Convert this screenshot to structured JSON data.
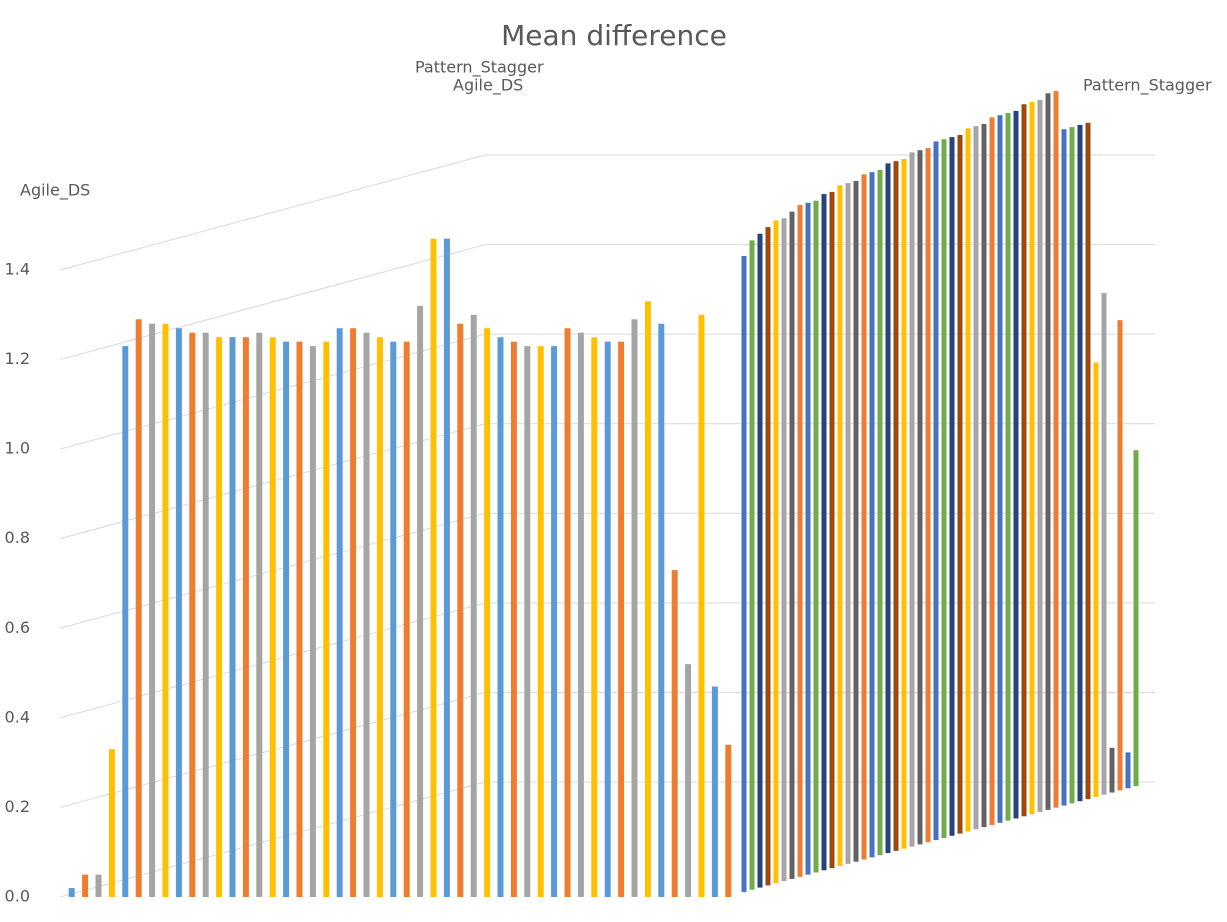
{
  "chart_data": {
    "type": "bar3d",
    "title": "Mean difference",
    "categories": [
      null,
      null,
      null,
      null,
      null,
      null,
      null,
      null,
      null,
      null,
      null,
      null,
      null,
      null,
      null,
      null,
      null,
      null,
      null,
      null,
      null,
      null,
      null,
      null,
      null,
      null,
      null,
      null,
      null,
      null,
      null,
      null,
      null,
      null,
      null,
      null,
      null,
      null,
      null,
      null,
      null,
      null,
      null,
      null,
      null,
      null,
      null,
      null,
      null,
      null
    ],
    "series": [
      {
        "name": "Agile_DS",
        "colors": [
          "#5b9bd5",
          "#ed7d31",
          "#a5a5a5",
          "#ffc000"
        ],
        "values": [
          0.02,
          0.05,
          0.05,
          0.33,
          1.23,
          1.29,
          1.28,
          1.28,
          1.27,
          1.26,
          1.26,
          1.25,
          1.25,
          1.25,
          1.26,
          1.25,
          1.24,
          1.24,
          1.23,
          1.24,
          1.27,
          1.27,
          1.26,
          1.25,
          1.24,
          1.24,
          1.32,
          1.47,
          1.47,
          1.28,
          1.3,
          1.27,
          1.25,
          1.24,
          1.23,
          1.23,
          1.23,
          1.27,
          1.26,
          1.25,
          1.24,
          1.24,
          1.29,
          1.33,
          1.28,
          0.73,
          0.52,
          1.3,
          0.47,
          0.34
        ]
      },
      {
        "name": "Pattern_Stagger",
        "colors": [
          "#4472c4",
          "#70ad47",
          "#264478",
          "#9e480e",
          "#ffc000",
          "#a5a5a5",
          "#636363",
          "#ed7d31"
        ],
        "values": [
          1.42,
          1.45,
          1.46,
          1.47,
          1.48,
          1.48,
          1.49,
          1.5,
          1.5,
          1.5,
          1.51,
          1.51,
          1.52,
          1.52,
          1.52,
          1.53,
          1.53,
          1.53,
          1.54,
          1.54,
          1.54,
          1.55,
          1.55,
          1.55,
          1.56,
          1.56,
          1.56,
          1.56,
          1.57,
          1.57,
          1.57,
          1.58,
          1.58,
          1.58,
          1.58,
          1.59,
          1.59,
          1.59,
          1.6,
          1.6,
          1.51,
          1.51,
          1.51,
          1.51,
          0.97,
          1.12,
          0.1,
          1.05,
          0.08,
          0.75
        ]
      }
    ],
    "ylim": [
      0,
      1.4
    ],
    "yticks": [
      {
        "value": 0,
        "label": "0.0"
      },
      0.2,
      0.4,
      0.6,
      0.8,
      {
        "value": 1,
        "label": "1.0"
      },
      1.2,
      1.4
    ],
    "grid": true
  }
}
